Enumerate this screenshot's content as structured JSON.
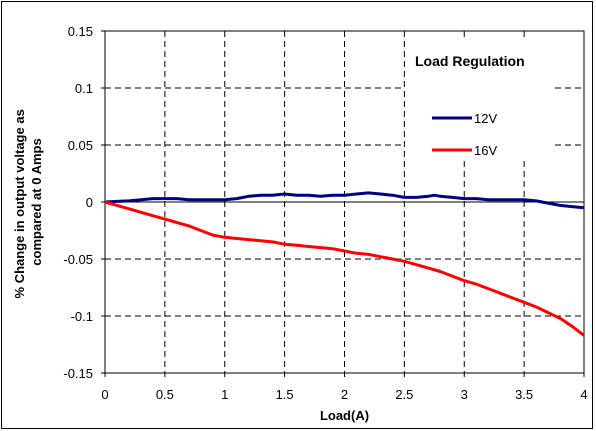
{
  "chart_data": {
    "type": "line",
    "title": "",
    "xlabel": "Load(A)",
    "ylabel_lines": [
      "% Change in output voltage as",
      "compared at 0 Amps"
    ],
    "xlim": [
      0,
      4
    ],
    "ylim": [
      -0.15,
      0.15
    ],
    "x_ticks": [
      0,
      0.5,
      1,
      1.5,
      2,
      2.5,
      3,
      3.5,
      4
    ],
    "x_tick_labels": [
      "0",
      "0.5",
      "1",
      "1.5",
      "2",
      "2.5",
      "3",
      "3.5",
      "4"
    ],
    "y_ticks": [
      0.15,
      0.1,
      0.05,
      0,
      -0.05,
      -0.1,
      -0.15
    ],
    "y_tick_labels": [
      "0.15",
      "0.1",
      "0.05",
      "0",
      "-0.05",
      "-0.1",
      "-0.15"
    ],
    "grid": "dashed",
    "legend_title": "Load Regulation",
    "legend_position": "top-right",
    "series": [
      {
        "name": "12V",
        "color": "#000080",
        "points": [
          [
            0,
            0
          ],
          [
            0.1,
            0.0005
          ],
          [
            0.2,
            0.001
          ],
          [
            0.3,
            0.002
          ],
          [
            0.4,
            0.003
          ],
          [
            0.5,
            0.003
          ],
          [
            0.6,
            0.003
          ],
          [
            0.7,
            0.002
          ],
          [
            0.8,
            0.002
          ],
          [
            0.9,
            0.002
          ],
          [
            1.0,
            0.002
          ],
          [
            1.1,
            0.003
          ],
          [
            1.2,
            0.005
          ],
          [
            1.3,
            0.006
          ],
          [
            1.4,
            0.006
          ],
          [
            1.5,
            0.007
          ],
          [
            1.6,
            0.006
          ],
          [
            1.7,
            0.006
          ],
          [
            1.8,
            0.005
          ],
          [
            1.9,
            0.006
          ],
          [
            2.0,
            0.006
          ],
          [
            2.1,
            0.007
          ],
          [
            2.2,
            0.008
          ],
          [
            2.3,
            0.007
          ],
          [
            2.4,
            0.006
          ],
          [
            2.5,
            0.004
          ],
          [
            2.6,
            0.004
          ],
          [
            2.7,
            0.005
          ],
          [
            2.75,
            0.006
          ],
          [
            2.8,
            0.005
          ],
          [
            2.9,
            0.004
          ],
          [
            3.0,
            0.003
          ],
          [
            3.1,
            0.003
          ],
          [
            3.2,
            0.002
          ],
          [
            3.3,
            0.002
          ],
          [
            3.4,
            0.002
          ],
          [
            3.5,
            0.002
          ],
          [
            3.6,
            0.001
          ],
          [
            3.7,
            -0.001
          ],
          [
            3.8,
            -0.003
          ],
          [
            3.9,
            -0.004
          ],
          [
            4.0,
            -0.005
          ]
        ]
      },
      {
        "name": "16V",
        "color": "#ff0000",
        "points": [
          [
            0,
            0
          ],
          [
            0.1,
            -0.003
          ],
          [
            0.2,
            -0.006
          ],
          [
            0.3,
            -0.009
          ],
          [
            0.4,
            -0.012
          ],
          [
            0.5,
            -0.015
          ],
          [
            0.6,
            -0.018
          ],
          [
            0.7,
            -0.021
          ],
          [
            0.8,
            -0.025
          ],
          [
            0.9,
            -0.029
          ],
          [
            1.0,
            -0.031
          ],
          [
            1.1,
            -0.032
          ],
          [
            1.2,
            -0.033
          ],
          [
            1.3,
            -0.034
          ],
          [
            1.4,
            -0.035
          ],
          [
            1.5,
            -0.037
          ],
          [
            1.6,
            -0.038
          ],
          [
            1.7,
            -0.039
          ],
          [
            1.8,
            -0.04
          ],
          [
            1.9,
            -0.041
          ],
          [
            2.0,
            -0.043
          ],
          [
            2.1,
            -0.045
          ],
          [
            2.2,
            -0.046
          ],
          [
            2.3,
            -0.048
          ],
          [
            2.4,
            -0.05
          ],
          [
            2.5,
            -0.052
          ],
          [
            2.6,
            -0.055
          ],
          [
            2.7,
            -0.058
          ],
          [
            2.8,
            -0.061
          ],
          [
            2.9,
            -0.065
          ],
          [
            3.0,
            -0.069
          ],
          [
            3.1,
            -0.072
          ],
          [
            3.2,
            -0.076
          ],
          [
            3.3,
            -0.08
          ],
          [
            3.4,
            -0.084
          ],
          [
            3.5,
            -0.088
          ],
          [
            3.6,
            -0.092
          ],
          [
            3.7,
            -0.097
          ],
          [
            3.8,
            -0.102
          ],
          [
            3.9,
            -0.109
          ],
          [
            4.0,
            -0.117
          ]
        ]
      }
    ]
  }
}
